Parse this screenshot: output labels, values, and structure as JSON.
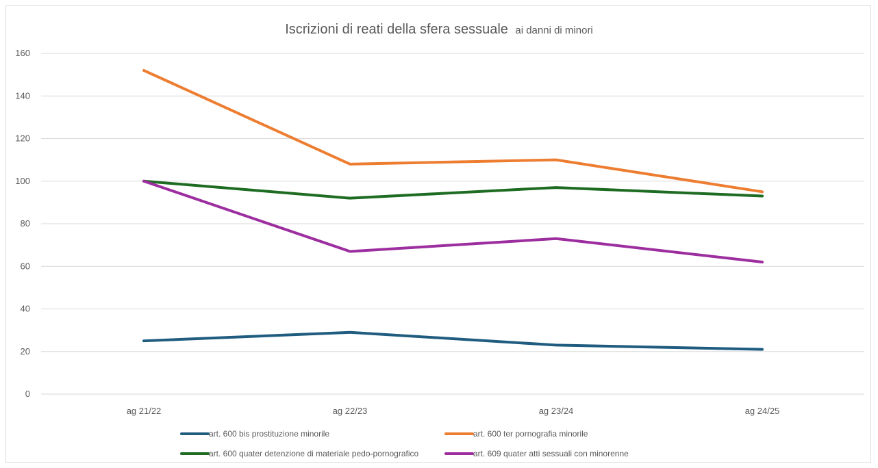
{
  "chart_data": {
    "type": "line",
    "title": "Iscrizioni di reati della sfera sessuale",
    "subtitle": "ai danni di minori",
    "xlabel": "",
    "ylabel": "",
    "categories": [
      "ag 21/22",
      "ag 22/23",
      "ag 23/24",
      "ag 24/25"
    ],
    "ylim": [
      0,
      160
    ],
    "yticks": [
      "0",
      "20",
      "40",
      "60",
      "80",
      "100",
      "120",
      "140",
      "160"
    ],
    "grid": true,
    "legend_position": "bottom",
    "series": [
      {
        "name": "art. 600 bis prostituzione minorile",
        "color": "#1f5c7f",
        "values": [
          25,
          29,
          23,
          21
        ]
      },
      {
        "name": "art. 600 ter pornografia minorile",
        "color": "#ed7d31",
        "values": [
          152,
          108,
          110,
          95
        ]
      },
      {
        "name": "art. 600 quater detenzione di materiale pedo-pornografico",
        "color": "#1e6b22",
        "values": [
          100,
          92,
          97,
          93
        ]
      },
      {
        "name": "art. 609 quater atti sessuali con minorenne",
        "color": "#9c2e9f",
        "values": [
          100,
          67,
          73,
          62
        ]
      }
    ]
  }
}
